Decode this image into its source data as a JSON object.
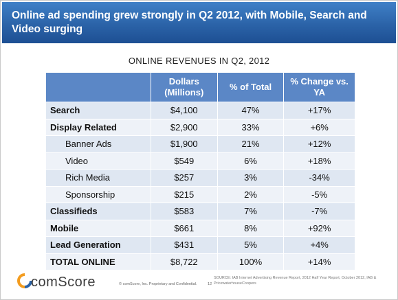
{
  "slide": {
    "title": "Online ad spending grew strongly in Q2 2012, with Mobile, Search and Video surging",
    "table_title": "ONLINE REVENUES IN Q2, 2012"
  },
  "table": {
    "headers": [
      "",
      "Dollars (Millions)",
      "% of Total",
      "% Change vs. YA"
    ],
    "rows": [
      {
        "category": "Search",
        "dollars": "$4,100",
        "pct_total": "47%",
        "pct_change": "+17%",
        "level": "main"
      },
      {
        "category": "Display Related",
        "dollars": "$2,900",
        "pct_total": "33%",
        "pct_change": "+6%",
        "level": "main"
      },
      {
        "category": "Banner Ads",
        "dollars": "$1,900",
        "pct_total": "21%",
        "pct_change": "+12%",
        "level": "sub"
      },
      {
        "category": "Video",
        "dollars": "$549",
        "pct_total": "6%",
        "pct_change": "+18%",
        "level": "sub"
      },
      {
        "category": "Rich Media",
        "dollars": "$257",
        "pct_total": "3%",
        "pct_change": "-34%",
        "level": "sub"
      },
      {
        "category": "Sponsorship",
        "dollars": "$215",
        "pct_total": "2%",
        "pct_change": "-5%",
        "level": "sub"
      },
      {
        "category": "Classifieds",
        "dollars": "$583",
        "pct_total": "7%",
        "pct_change": "-7%",
        "level": "main"
      },
      {
        "category": "Mobile",
        "dollars": "$661",
        "pct_total": "8%",
        "pct_change": "+92%",
        "level": "main"
      },
      {
        "category": "Lead Generation",
        "dollars": "$431",
        "pct_total": "5%",
        "pct_change": "+4%",
        "level": "main"
      },
      {
        "category": "TOTAL ONLINE",
        "dollars": "$8,722",
        "pct_total": "100%",
        "pct_change": "+14%",
        "level": "main"
      }
    ]
  },
  "footer": {
    "logo_text": "comScore",
    "confidential": "© comScore, Inc. Proprietary and Confidential.",
    "page_number": "12",
    "source": "SOURCE: IAB Internet Advertising Revenue Report, 2012 Half Year Report, October 2012, IAB & PricewaterhouseCoopers"
  },
  "colors": {
    "header_blue": "#2b63a8",
    "table_header": "#5b87c6",
    "row_dark": "#dfe7f2",
    "row_light": "#eef2f8",
    "logo_orange": "#f39c1f",
    "logo_blue": "#2b63a8"
  }
}
